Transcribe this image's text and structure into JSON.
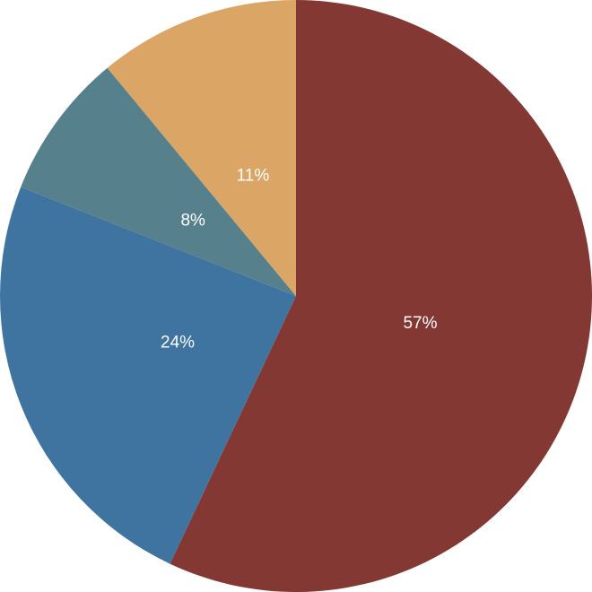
{
  "chart_data": {
    "type": "pie",
    "values": [
      57,
      24,
      8,
      11
    ],
    "value_labels": [
      "57%",
      "24%",
      "8%",
      "11%"
    ],
    "colors": [
      "#843833",
      "#3f74a1",
      "#56808c",
      "#dba565"
    ],
    "start_angle": 0,
    "direction": "clockwise"
  }
}
